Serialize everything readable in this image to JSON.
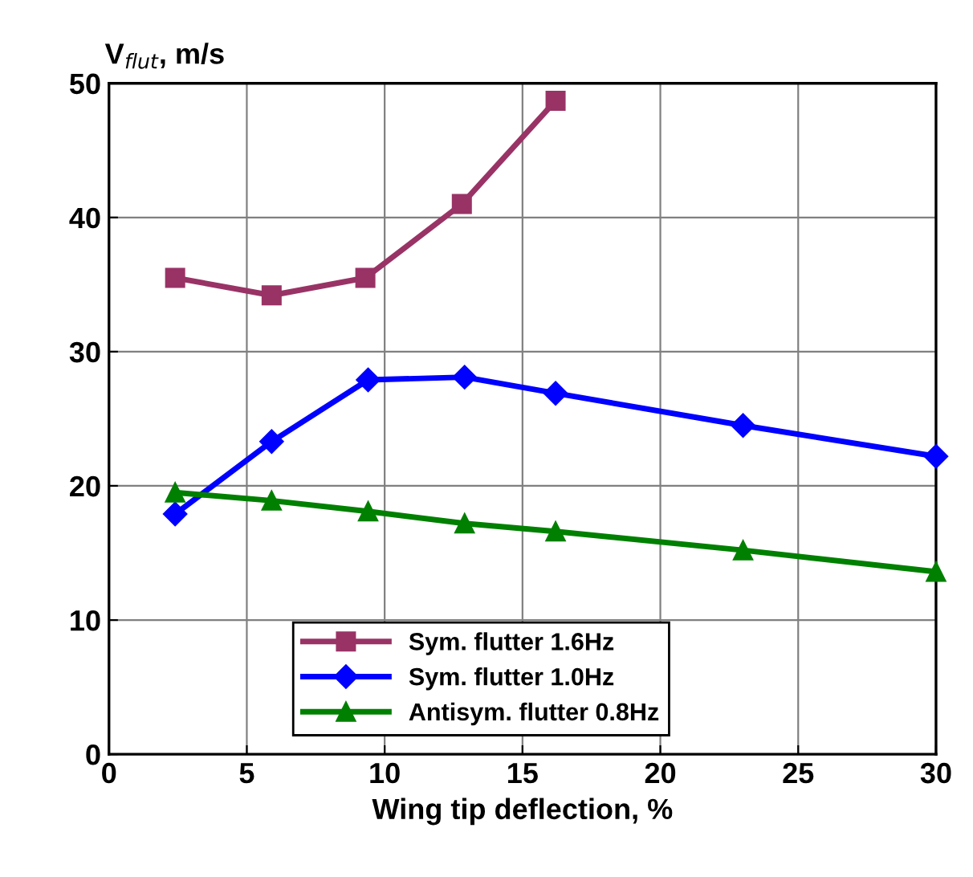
{
  "chart_data": {
    "type": "line",
    "ylabel": "V$_{flut}$, m/s",
    "xlabel": "Wing tip deflection, %",
    "xlim": [
      0,
      30
    ],
    "xticks": [
      0,
      5,
      10,
      15,
      20,
      25,
      30
    ],
    "ylim": [
      0,
      50
    ],
    "yticks": [
      0,
      10,
      20,
      30,
      40,
      50
    ],
    "grid": true,
    "legend": "bottom",
    "series": [
      {
        "name": "Sym. flutter 1.6Hz",
        "color": "#993366",
        "marker": "square",
        "x": [
          2.4,
          5.9,
          9.3,
          12.8,
          16.2
        ],
        "values": [
          35.5,
          34.2,
          35.5,
          41.0,
          48.7
        ]
      },
      {
        "name": "Sym. flutter 1.0Hz",
        "color": "#0000ff",
        "marker": "diamond",
        "x": [
          2.4,
          5.9,
          9.4,
          12.9,
          16.2,
          23.0,
          30.0
        ],
        "values": [
          17.9,
          23.3,
          27.9,
          28.1,
          26.9,
          24.5,
          22.2
        ]
      },
      {
        "name": "Antisym. flutter 0.8Hz",
        "color": "#008000",
        "marker": "triangle",
        "x": [
          2.4,
          5.9,
          9.4,
          12.9,
          16.2,
          23.0,
          30.0
        ],
        "values": [
          19.5,
          18.9,
          18.1,
          17.2,
          16.6,
          15.2,
          13.6
        ]
      }
    ]
  }
}
